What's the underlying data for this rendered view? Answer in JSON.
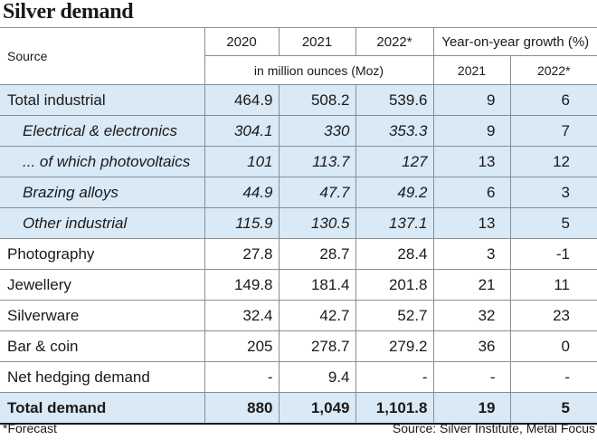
{
  "title": "Silver demand",
  "header": {
    "source_label": "Source",
    "years": [
      "2020",
      "2021",
      "2022*"
    ],
    "unit_label": "in million ounces (Moz)",
    "growth_label": "Year-on-year growth (%)",
    "growth_years": [
      "2021",
      "2022*"
    ]
  },
  "rows": [
    {
      "label": "Total industrial",
      "v2020": "464.9",
      "v2021": "508.2",
      "v2022": "539.6",
      "g2021": "9",
      "g2022": "6"
    },
    {
      "label": "Electrical & electronics",
      "v2020": "304.1",
      "v2021": "330",
      "v2022": "353.3",
      "g2021": "9",
      "g2022": "7"
    },
    {
      "label": "... of which photovoltaics",
      "v2020": "101",
      "v2021": "113.7",
      "v2022": "127",
      "g2021": "13",
      "g2022": "12"
    },
    {
      "label": "Brazing alloys",
      "v2020": "44.9",
      "v2021": "47.7",
      "v2022": "49.2",
      "g2021": "6",
      "g2022": "3"
    },
    {
      "label": "Other industrial",
      "v2020": "115.9",
      "v2021": "130.5",
      "v2022": "137.1",
      "g2021": "13",
      "g2022": "5"
    },
    {
      "label": "Photography",
      "v2020": "27.8",
      "v2021": "28.7",
      "v2022": "28.4",
      "g2021": "3",
      "g2022": "-1"
    },
    {
      "label": "Jewellery",
      "v2020": "149.8",
      "v2021": "181.4",
      "v2022": "201.8",
      "g2021": "21",
      "g2022": "11"
    },
    {
      "label": "Silverware",
      "v2020": "32.4",
      "v2021": "42.7",
      "v2022": "52.7",
      "g2021": "32",
      "g2022": "23"
    },
    {
      "label": "Bar & coin",
      "v2020": "205",
      "v2021": "278.7",
      "v2022": "279.2",
      "g2021": "36",
      "g2022": "0"
    },
    {
      "label": "Net hedging demand",
      "v2020": "-",
      "v2021": "9.4",
      "v2022": "-",
      "g2021": "-",
      "g2022": "-"
    },
    {
      "label": "Total demand",
      "v2020": "880",
      "v2021": "1,049",
      "v2022": "1,101.8",
      "g2021": "19",
      "g2022": "5"
    }
  ],
  "footer": {
    "note": "*Forecast",
    "source": "Source: Silver Institute, Metal Focus"
  },
  "colors": {
    "shade": "#d9e9f6",
    "grid": "#8d8d8d"
  },
  "chart_data": {
    "type": "table",
    "title": "Silver demand",
    "columns": [
      "Source",
      "2020",
      "2021",
      "2022*",
      "Growth 2021 (%)",
      "Growth 2022* (%)"
    ],
    "rows": [
      [
        "Total industrial",
        464.9,
        508.2,
        539.6,
        9,
        6
      ],
      [
        "Electrical & electronics",
        304.1,
        330,
        353.3,
        9,
        7
      ],
      [
        "... of which photovoltaics",
        101,
        113.7,
        127,
        13,
        12
      ],
      [
        "Brazing alloys",
        44.9,
        47.7,
        49.2,
        6,
        3
      ],
      [
        "Other industrial",
        115.9,
        130.5,
        137.1,
        13,
        5
      ],
      [
        "Photography",
        27.8,
        28.7,
        28.4,
        3,
        -1
      ],
      [
        "Jewellery",
        149.8,
        181.4,
        201.8,
        21,
        11
      ],
      [
        "Silverware",
        32.4,
        42.7,
        52.7,
        32,
        23
      ],
      [
        "Bar & coin",
        205,
        278.7,
        279.2,
        36,
        0
      ],
      [
        "Net hedging demand",
        null,
        9.4,
        null,
        null,
        null
      ],
      [
        "Total demand",
        880,
        1049,
        1101.8,
        19,
        5
      ]
    ]
  }
}
